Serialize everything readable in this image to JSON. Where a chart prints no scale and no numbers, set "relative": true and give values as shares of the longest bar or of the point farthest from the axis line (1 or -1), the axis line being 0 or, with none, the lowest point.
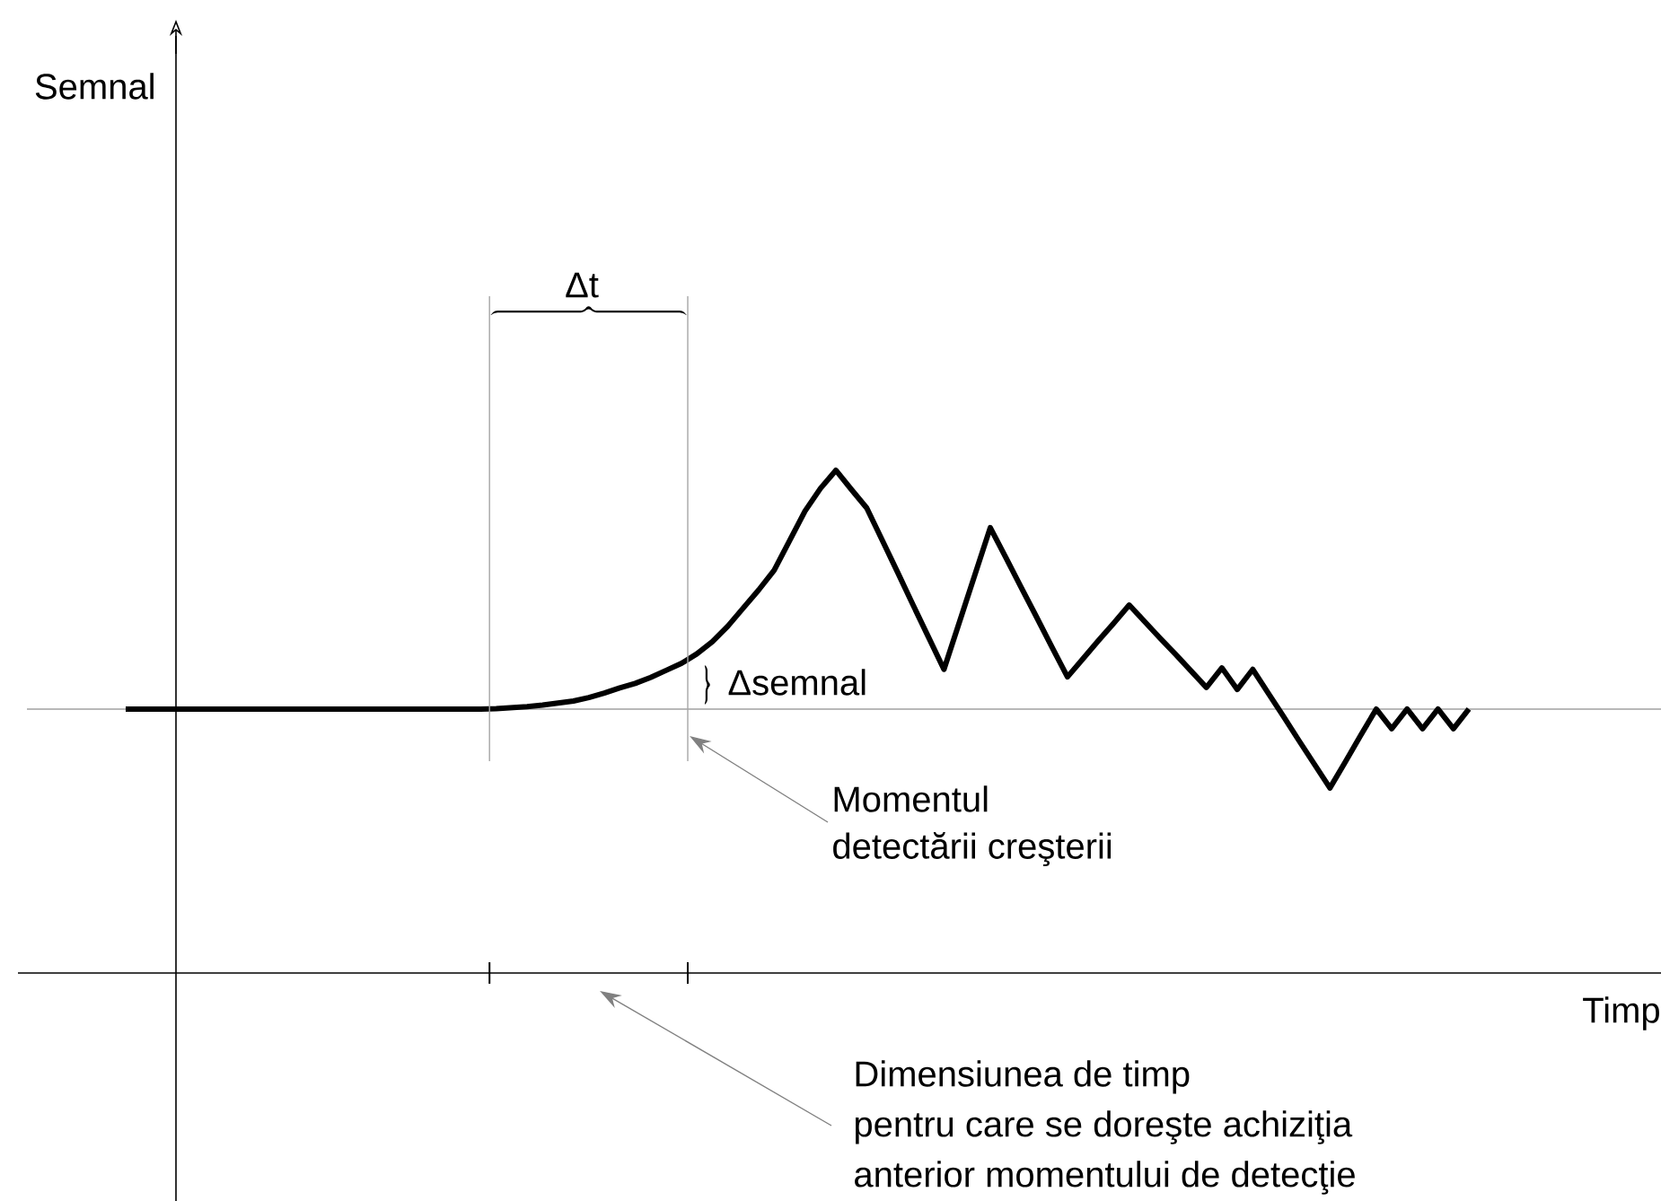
{
  "chart_data": {
    "type": "line",
    "relative": true,
    "xlabel": "Timp",
    "categories": [
      null,
      null,
      null,
      null,
      null,
      null,
      null,
      null,
      null,
      null,
      null,
      null,
      null,
      null,
      null,
      null,
      null,
      null,
      null,
      null,
      null,
      null,
      null,
      null,
      null,
      null,
      null,
      null,
      null,
      null,
      null,
      null,
      null,
      null,
      null,
      null,
      null,
      null,
      null,
      null,
      null,
      null,
      null,
      null,
      null,
      null,
      null,
      null,
      null,
      null,
      null,
      null,
      null,
      null,
      null,
      null,
      null,
      null,
      null,
      null,
      null,
      null,
      null,
      null,
      null,
      null,
      null,
      null,
      null,
      null,
      null,
      null,
      null,
      null,
      null,
      null,
      null,
      null,
      null,
      null,
      null,
      null,
      null,
      null,
      null,
      null,
      null,
      null
    ],
    "series": [
      {
        "color": "#000000",
        "values": [
          0.525,
          0.525,
          0.525,
          0.525,
          0.525,
          0.525,
          0.525,
          0.525,
          0.525,
          0.525,
          0.525,
          0.525,
          0.525,
          0.525,
          0.525,
          0.525,
          0.525,
          0.525,
          0.525,
          0.525,
          0.525,
          0.525,
          0.525,
          0.525,
          0.526,
          0.528,
          0.53,
          0.533,
          0.537,
          0.541,
          0.548,
          0.557,
          0.567,
          0.576,
          0.588,
          0.602,
          0.616,
          0.635,
          0.659,
          0.69,
          0.726,
          0.762,
          0.801,
          0.86,
          0.919,
          0.964,
          1.0,
          0.962,
          0.925,
          0.861,
          0.797,
          0.732,
          0.668,
          0.604,
          0.698,
          0.792,
          0.886,
          0.827,
          0.767,
          0.708,
          0.648,
          0.589,
          0.625,
          0.661,
          0.696,
          0.732,
          0.699,
          0.666,
          0.634,
          0.601,
          0.568,
          0.607,
          0.564,
          0.604,
          0.557,
          0.51,
          0.462,
          0.415,
          0.368,
          0.42,
          0.473,
          0.525,
          0.486,
          0.525,
          0.486,
          0.525,
          0.486,
          0.525
        ]
      }
    ],
    "line_style": "solid",
    "marker": "none",
    "ref_lines": [
      {
        "axis": "y",
        "value": 0.525,
        "color": "#a0a0a0"
      }
    ],
    "annotations": [
      "Δt",
      "Δsemnal",
      "Momentul",
      "detectării creşterii",
      "Dimensiunea de timp",
      "pentru care se doreşte achiziţia",
      "anterior momentului de detecţie",
      "Semnal"
    ]
  }
}
